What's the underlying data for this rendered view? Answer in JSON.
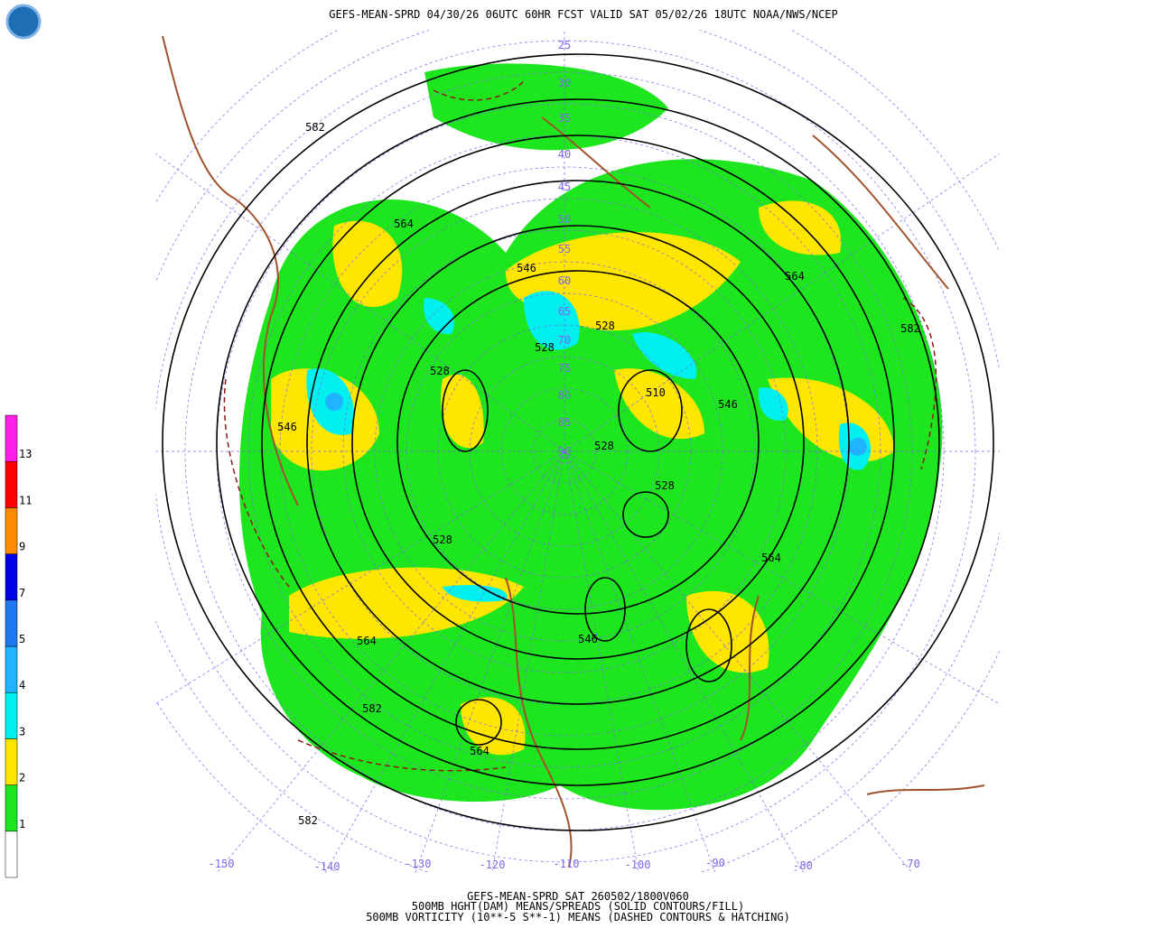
{
  "header": {
    "title": "GEFS-MEAN-SPRD 04/30/26 06UTC 60HR FCST VALID SAT 05/02/26 18UTC NOAA/NWS/NCEP"
  },
  "footer": {
    "lines": [
      "GEFS-MEAN-SPRD SAT 260502/1800V060",
      "500MB HGHT(DAM) MEANS/SPREADS (SOLID CONTOURS/FILL)",
      "500MB VORTICITY (10**-5 S**-1) MEANS (DASHED CONTOURS & HATCHING)"
    ]
  },
  "colorbar": {
    "labels": [
      "1",
      "2",
      "3",
      "4",
      "5",
      "7",
      "9",
      "11",
      "13"
    ],
    "colors": [
      "#ffffff",
      "#1ee61e",
      "#ffe600",
      "#00f0f0",
      "#1eb4ff",
      "#1e78f0",
      "#0000e6",
      "#ff8c00",
      "#ff0000",
      "#ff1ee6"
    ]
  },
  "map": {
    "lon_labels": [
      "-150",
      "-140",
      "-130",
      "-120",
      "-110",
      "-100",
      "-90",
      "-80",
      "-70"
    ],
    "lat_labels": [
      "25",
      "30",
      "35",
      "40",
      "45",
      "50",
      "55",
      "60",
      "65",
      "70",
      "75",
      "80",
      "85",
      "90"
    ],
    "contour_labels": [
      "582",
      "564",
      "564",
      "582",
      "528",
      "546",
      "528",
      "528",
      "510",
      "546",
      "528",
      "528",
      "528",
      "564",
      "564",
      "546",
      "582",
      "564",
      "582",
      "546"
    ]
  }
}
